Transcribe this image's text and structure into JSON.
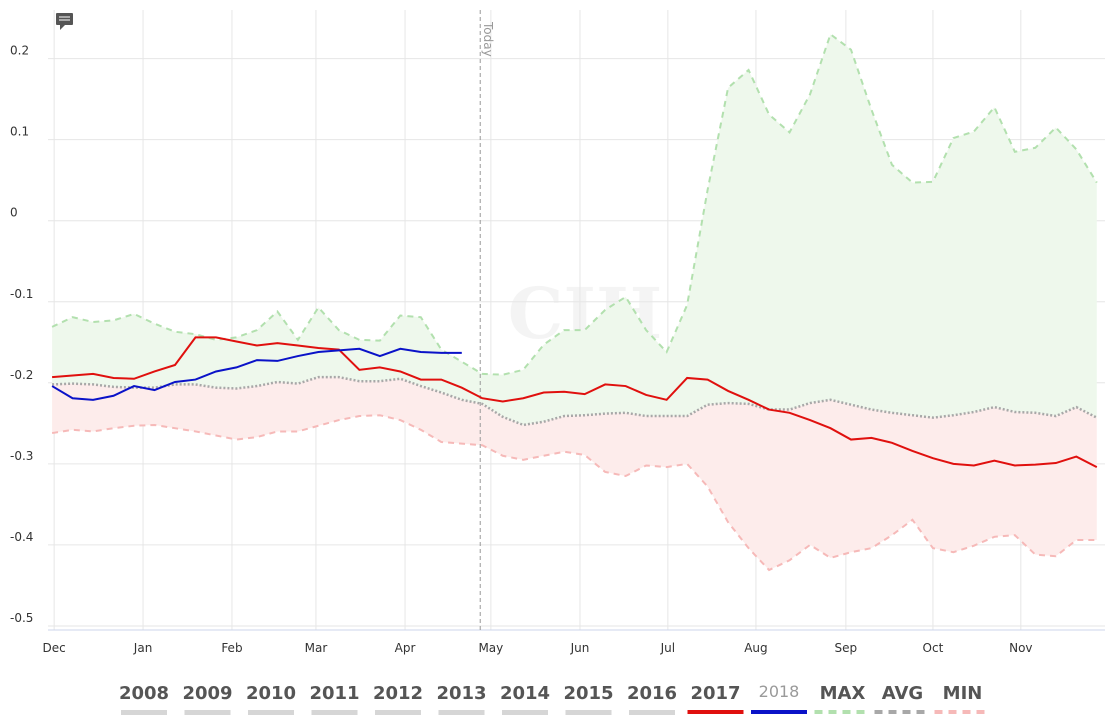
{
  "chart_data": {
    "type": "line",
    "watermark": "CIH",
    "annotation": {
      "text": "Today",
      "x": 20.9
    },
    "x": [
      0,
      1,
      2,
      3,
      4,
      5,
      6,
      7,
      8,
      9,
      10,
      11,
      12,
      13,
      14,
      15,
      16,
      17,
      18,
      19,
      20,
      21,
      22,
      23,
      24,
      25,
      26,
      27,
      28,
      29,
      30,
      31,
      32,
      33,
      34,
      35,
      36,
      37,
      38,
      39,
      40,
      41,
      42,
      43,
      44,
      45,
      46,
      47,
      48,
      49,
      50,
      51
    ],
    "xlim": [
      -0.2,
      51.4
    ],
    "xticks": [
      {
        "value": 0.1,
        "label": "Dec"
      },
      {
        "value": 4.44,
        "label": "Jan"
      },
      {
        "value": 8.78,
        "label": "Feb"
      },
      {
        "value": 12.88,
        "label": "Mar"
      },
      {
        "value": 17.23,
        "label": "Apr"
      },
      {
        "value": 21.42,
        "label": "May"
      },
      {
        "value": 25.77,
        "label": "Jun"
      },
      {
        "value": 30.06,
        "label": "Jul"
      },
      {
        "value": 34.36,
        "label": "Aug"
      },
      {
        "value": 38.75,
        "label": "Sep"
      },
      {
        "value": 43.0,
        "label": "Oct"
      },
      {
        "value": 47.29,
        "label": "Nov"
      }
    ],
    "ylim": [
      -0.505,
      0.26
    ],
    "yticks": [
      0.2,
      0.1,
      0,
      -0.1,
      -0.2,
      -0.3,
      -0.4,
      -0.5
    ],
    "grid": true,
    "hidden_years": [
      "2008",
      "2009",
      "2010",
      "2011",
      "2012",
      "2013",
      "2014",
      "2015",
      "2016"
    ],
    "series": [
      {
        "name": "2017",
        "color": "#e0100e",
        "dash": false,
        "values": [
          -0.193,
          -0.191,
          -0.189,
          -0.194,
          -0.195,
          -0.186,
          -0.178,
          -0.144,
          -0.144,
          -0.149,
          -0.154,
          -0.151,
          -0.154,
          -0.157,
          -0.159,
          -0.184,
          -0.181,
          -0.186,
          -0.196,
          -0.196,
          -0.206,
          -0.219,
          -0.223,
          -0.219,
          -0.212,
          -0.211,
          -0.214,
          -0.202,
          -0.204,
          -0.215,
          -0.221,
          -0.194,
          -0.196,
          -0.21,
          -0.221,
          -0.233,
          -0.237,
          -0.246,
          -0.256,
          -0.27,
          -0.268,
          -0.274,
          -0.284,
          -0.293,
          -0.3,
          -0.302,
          -0.296,
          -0.302,
          -0.301,
          -0.299,
          -0.291,
          -0.304
        ]
      },
      {
        "name": "2018",
        "color": "#0a12c8",
        "dash": false,
        "legend_text_color": "#9a9a9a",
        "values": [
          -0.204,
          -0.219,
          -0.221,
          -0.216,
          -0.204,
          -0.209,
          -0.199,
          -0.196,
          -0.186,
          -0.181,
          -0.172,
          -0.173,
          -0.167,
          -0.162,
          -0.16,
          -0.158,
          -0.167,
          -0.158,
          -0.162,
          -0.163,
          -0.163,
          null,
          null,
          null,
          null,
          null,
          null,
          null,
          null,
          null,
          null,
          null,
          null,
          null,
          null,
          null,
          null,
          null,
          null,
          null,
          null,
          null,
          null,
          null,
          null,
          null,
          null,
          null,
          null,
          null,
          null,
          null
        ]
      },
      {
        "name": "MAX",
        "color": "#b2e0ae",
        "dash": "6,5",
        "fill_color": "#eef8ec",
        "values": [
          -0.131,
          -0.119,
          -0.125,
          -0.123,
          -0.115,
          -0.127,
          -0.137,
          -0.14,
          -0.147,
          -0.144,
          -0.135,
          -0.112,
          -0.147,
          -0.107,
          -0.135,
          -0.147,
          -0.148,
          -0.117,
          -0.119,
          -0.159,
          -0.174,
          -0.189,
          -0.19,
          -0.184,
          -0.153,
          -0.135,
          -0.135,
          -0.11,
          -0.094,
          -0.135,
          -0.162,
          -0.104,
          0.038,
          0.164,
          0.186,
          0.131,
          0.109,
          0.156,
          0.23,
          0.211,
          0.137,
          0.069,
          0.047,
          0.048,
          0.102,
          0.11,
          0.14,
          0.085,
          0.09,
          0.115,
          0.088,
          0.047
        ]
      },
      {
        "name": "AVG",
        "color": "#a8a8a8",
        "dash": "2,2",
        "fill_color": "#fdeceb",
        "values": [
          -0.202,
          -0.201,
          -0.202,
          -0.205,
          -0.206,
          -0.206,
          -0.202,
          -0.202,
          -0.206,
          -0.207,
          -0.204,
          -0.199,
          -0.201,
          -0.193,
          -0.193,
          -0.198,
          -0.198,
          -0.195,
          -0.204,
          -0.212,
          -0.221,
          -0.226,
          -0.242,
          -0.252,
          -0.248,
          -0.241,
          -0.24,
          -0.238,
          -0.237,
          -0.241,
          -0.241,
          -0.241,
          -0.227,
          -0.225,
          -0.226,
          -0.233,
          -0.233,
          -0.225,
          -0.221,
          -0.227,
          -0.233,
          -0.237,
          -0.24,
          -0.243,
          -0.24,
          -0.236,
          -0.23,
          -0.236,
          -0.237,
          -0.241,
          -0.23,
          -0.243
        ]
      },
      {
        "name": "MIN",
        "color": "#f6b9b8",
        "dash": "6,5",
        "values": [
          -0.262,
          -0.258,
          -0.26,
          -0.256,
          -0.253,
          -0.252,
          -0.256,
          -0.26,
          -0.265,
          -0.27,
          -0.267,
          -0.26,
          -0.26,
          -0.253,
          -0.246,
          -0.241,
          -0.24,
          -0.246,
          -0.258,
          -0.273,
          -0.275,
          -0.277,
          -0.29,
          -0.295,
          -0.29,
          -0.285,
          -0.289,
          -0.31,
          -0.315,
          -0.302,
          -0.304,
          -0.3,
          -0.328,
          -0.372,
          -0.404,
          -0.431,
          -0.419,
          -0.4,
          -0.416,
          -0.409,
          -0.404,
          -0.388,
          -0.369,
          -0.404,
          -0.409,
          -0.401,
          -0.39,
          -0.388,
          -0.412,
          -0.414,
          -0.394,
          -0.394
        ]
      }
    ]
  }
}
